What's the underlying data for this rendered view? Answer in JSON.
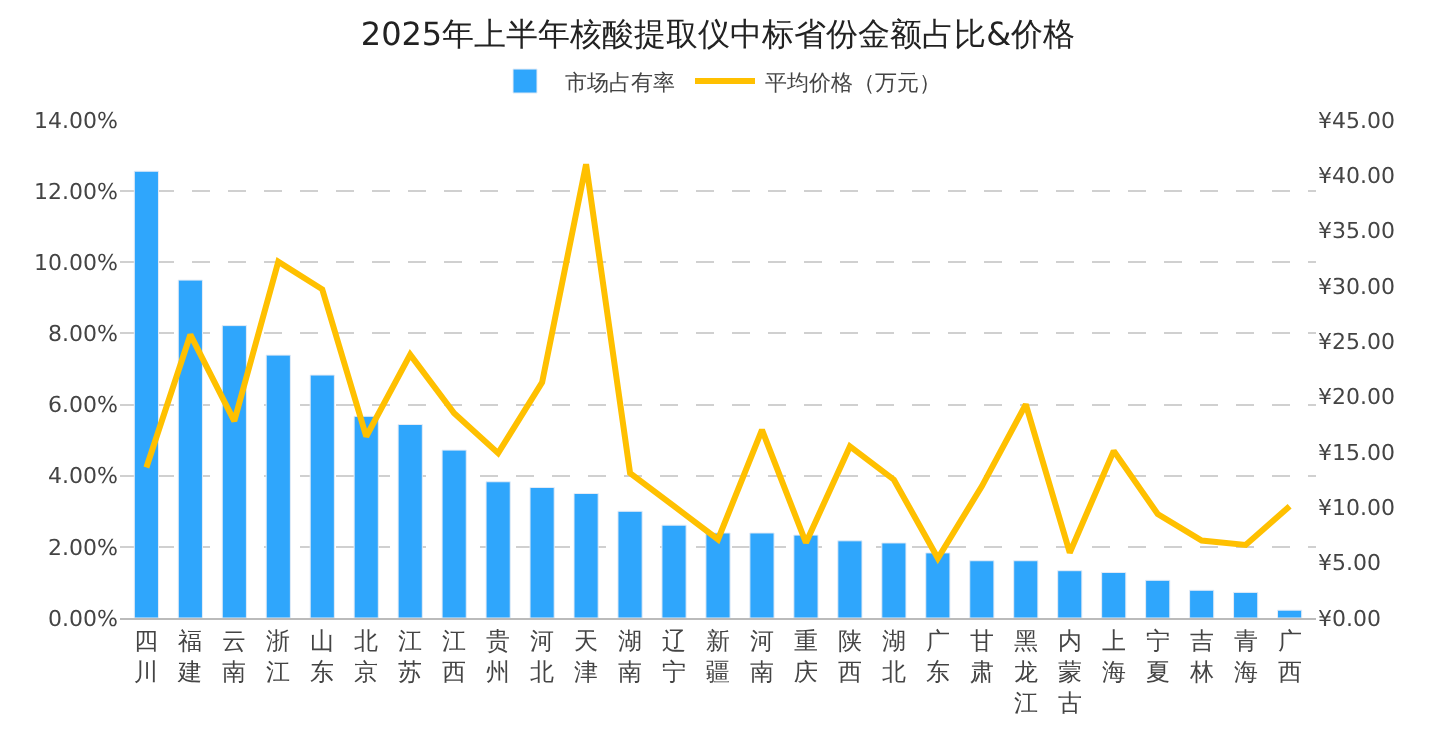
{
  "chart_data": {
    "type": "bar",
    "title": "2025年上半年核酸提取仪中标省份金额占比&价格",
    "categories": [
      "四川",
      "福建",
      "云南",
      "浙江",
      "山东",
      "北京",
      "江苏",
      "江西",
      "贵州",
      "河北",
      "天津",
      "湖南",
      "辽宁",
      "新疆",
      "河南",
      "重庆",
      "陕西",
      "湖北",
      "广东",
      "甘肃",
      "黑龙江",
      "内蒙古",
      "上海",
      "宁夏",
      "吉林",
      "青海",
      "广西"
    ],
    "series": [
      {
        "name": "市场占有率",
        "color": "#2fa6fc",
        "values": [
          12.56,
          9.5,
          8.22,
          7.39,
          6.83,
          5.67,
          5.44,
          4.72,
          3.83,
          3.67,
          3.5,
          3.0,
          2.61,
          2.39,
          2.39,
          2.33,
          2.17,
          2.11,
          1.83,
          1.61,
          1.61,
          1.33,
          1.28,
          1.06,
          0.78,
          0.72,
          0.22
        ]
      },
      {
        "name": "平均价格（万元）",
        "type": "line",
        "axis": "y2",
        "color": "#ffc000",
        "values": [
          13.6,
          25.6,
          17.8,
          32.2,
          29.7,
          16.4,
          23.8,
          18.5,
          14.9,
          21.3,
          41.0,
          13.1,
          10.1,
          7.1,
          17.0,
          6.8,
          15.5,
          12.5,
          5.4,
          11.9,
          19.3,
          5.9,
          15.1,
          9.4,
          7.0,
          6.6,
          10.1
        ]
      }
    ],
    "ylim": [
      0,
      14
    ],
    "yticks": [
      {
        "value": 0,
        "label": "0.00%"
      },
      {
        "value": 2,
        "label": "2.00%"
      },
      {
        "value": 4,
        "label": "4.00%"
      },
      {
        "value": 6,
        "label": "6.00%"
      },
      {
        "value": 8,
        "label": "8.00%"
      },
      {
        "value": 10,
        "label": "10.00%"
      },
      {
        "value": 12,
        "label": "12.00%"
      },
      {
        "value": 14,
        "label": "14.00%"
      }
    ],
    "y2lim": [
      0,
      45
    ],
    "y2ticks": [
      {
        "value": 0,
        "label": "¥0.00"
      },
      {
        "value": 5,
        "label": "¥5.00"
      },
      {
        "value": 10,
        "label": "¥10.00"
      },
      {
        "value": 15,
        "label": "¥15.00"
      },
      {
        "value": 20,
        "label": "¥20.00"
      },
      {
        "value": 25,
        "label": "¥25.00"
      },
      {
        "value": 30,
        "label": "¥30.00"
      },
      {
        "value": 35,
        "label": "¥35.00"
      },
      {
        "value": 40,
        "label": "¥40.00"
      },
      {
        "value": 45,
        "label": "¥45.00"
      }
    ],
    "grid": "y",
    "legend": "top",
    "marker": "none",
    "line_style": "solid"
  }
}
